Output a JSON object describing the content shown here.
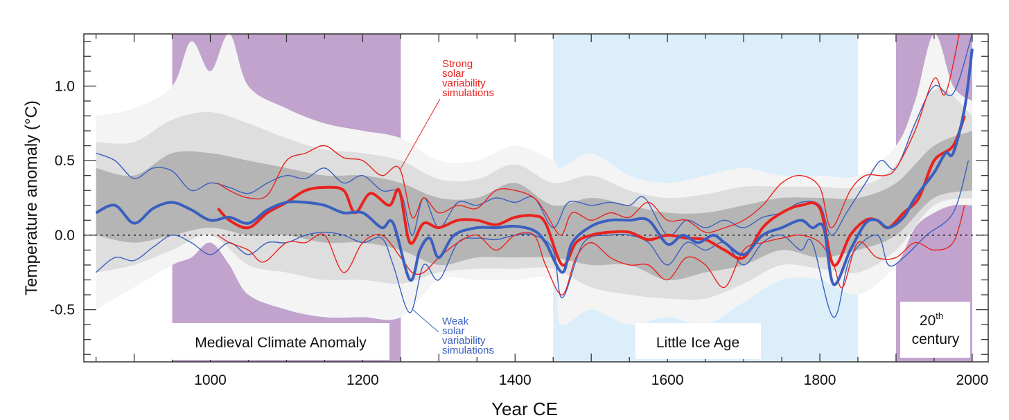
{
  "chart_data": {
    "type": "line",
    "title": "",
    "xlabel": "Year CE",
    "ylabel": "Temperature anomaly (°C)",
    "xlim": [
      834,
      2021
    ],
    "ylim": [
      -0.85,
      1.35
    ],
    "x_ticks": [
      1000,
      1200,
      1400,
      1600,
      1800,
      2000
    ],
    "x_tick_labels": [
      "1000",
      "1200",
      "1400",
      "1600",
      "1800",
      "2000"
    ],
    "y_ticks": [
      -0.5,
      0.0,
      0.5,
      1.0
    ],
    "y_tick_labels": [
      "-0.5",
      "0.0",
      "0.5",
      "1.0"
    ],
    "zero_line": "dotted",
    "grid": false,
    "colors": {
      "strong": "#e8231f",
      "weak": "#3a5fbf",
      "medieval_shade": "#c1a3cd",
      "lia_shade": "#dbeefa",
      "envelope": "#888888"
    },
    "shaded_periods": [
      {
        "name": "Medieval Climate Anomaly",
        "label": "Medieval Climate Anomaly",
        "start": 950,
        "end": 1250,
        "color": "#c1a3cd"
      },
      {
        "name": "Little Ice Age",
        "label": "Little Ice Age",
        "start": 1450,
        "end": 1850,
        "color": "#dbeefa"
      },
      {
        "name": "20th century",
        "label_main": "20",
        "label_sup": "th",
        "label_second": "century",
        "start": 1900,
        "end": 2000,
        "color": "#c1a3cd"
      }
    ],
    "annotations": {
      "strong": [
        "Strong",
        "solar",
        "variability",
        "simulations"
      ],
      "weak": [
        "Weak",
        "solar",
        "variability",
        "simulations"
      ]
    },
    "envelope": {
      "outer": {
        "x": [
          850,
          900,
          950,
          975,
          1000,
          1025,
          1050,
          1100,
          1150,
          1200,
          1250,
          1300,
          1350,
          1400,
          1450,
          1460,
          1500,
          1550,
          1600,
          1650,
          1700,
          1750,
          1800,
          1850,
          1900,
          1925,
          1950,
          1975,
          2000
        ],
        "upper": [
          0.8,
          0.85,
          1.0,
          1.3,
          1.1,
          1.35,
          1.0,
          0.85,
          0.75,
          0.7,
          0.65,
          0.5,
          0.5,
          0.6,
          0.5,
          0.45,
          0.55,
          0.4,
          0.35,
          0.4,
          0.45,
          0.4,
          0.4,
          0.4,
          0.6,
          0.9,
          1.35,
          1.0,
          0.9
        ],
        "lower": [
          -0.5,
          -0.35,
          -0.2,
          -0.15,
          -0.05,
          -0.2,
          -0.4,
          -0.5,
          -0.55,
          -0.55,
          -0.55,
          -0.3,
          -0.3,
          -0.3,
          -0.3,
          -0.6,
          -0.5,
          -0.6,
          -0.55,
          -0.6,
          -0.45,
          -0.3,
          -0.3,
          -0.4,
          -0.2,
          0.05,
          0.15,
          0.2,
          0.2
        ]
      },
      "core": {
        "x": [
          850,
          900,
          950,
          1000,
          1050,
          1100,
          1150,
          1200,
          1250,
          1300,
          1350,
          1400,
          1450,
          1500,
          1550,
          1600,
          1650,
          1700,
          1750,
          1800,
          1850,
          1900,
          1950,
          2000
        ],
        "upper": [
          0.45,
          0.4,
          0.55,
          0.55,
          0.5,
          0.45,
          0.4,
          0.4,
          0.35,
          0.25,
          0.25,
          0.35,
          0.2,
          0.25,
          0.2,
          0.15,
          0.15,
          0.2,
          0.25,
          0.25,
          0.25,
          0.35,
          0.6,
          0.7
        ],
        "lower": [
          0.0,
          -0.05,
          0.0,
          0.05,
          0.0,
          0.0,
          -0.05,
          -0.05,
          -0.1,
          -0.2,
          -0.15,
          -0.15,
          -0.15,
          -0.2,
          -0.2,
          -0.3,
          -0.25,
          -0.2,
          -0.1,
          -0.15,
          -0.1,
          0.0,
          0.25,
          0.3
        ]
      }
    },
    "series": [
      {
        "id": "weak-upper",
        "group": "weak",
        "kind": "range",
        "x": [
          850,
          875,
          900,
          925,
          950,
          975,
          1000,
          1025,
          1050,
          1075,
          1100,
          1125,
          1150,
          1175,
          1200,
          1225,
          1250,
          1265,
          1280,
          1300,
          1325,
          1350,
          1375,
          1400,
          1425,
          1450,
          1470,
          1500,
          1525,
          1550,
          1570,
          1600,
          1625,
          1650,
          1675,
          1700,
          1725,
          1750,
          1775,
          1800,
          1815,
          1835,
          1860,
          1880,
          1900,
          1925,
          1950,
          1975,
          2000
        ],
        "y": [
          0.55,
          0.5,
          0.38,
          0.45,
          0.43,
          0.3,
          0.35,
          0.32,
          0.28,
          0.35,
          0.4,
          0.38,
          0.45,
          0.35,
          0.4,
          0.3,
          0.28,
          0.0,
          0.25,
          0.05,
          0.22,
          0.2,
          0.25,
          0.22,
          0.25,
          0.05,
          0.22,
          0.2,
          0.22,
          0.2,
          0.25,
          0.0,
          0.1,
          0.05,
          0.1,
          0.05,
          0.12,
          0.15,
          0.22,
          0.2,
          0.0,
          0.15,
          0.35,
          0.5,
          0.45,
          0.75,
          1.0,
          0.95,
          1.35
        ]
      },
      {
        "id": "weak-lower",
        "group": "weak",
        "kind": "range",
        "x": [
          850,
          875,
          900,
          925,
          950,
          975,
          1000,
          1025,
          1050,
          1075,
          1100,
          1125,
          1150,
          1175,
          1200,
          1225,
          1240,
          1262,
          1280,
          1300,
          1325,
          1350,
          1375,
          1400,
          1425,
          1450,
          1462,
          1490,
          1525,
          1550,
          1575,
          1600,
          1625,
          1650,
          1675,
          1700,
          1725,
          1750,
          1775,
          1790,
          1818,
          1840,
          1875,
          1890,
          1910,
          1940,
          1975,
          1995
        ],
        "y": [
          -0.25,
          -0.15,
          -0.17,
          -0.08,
          0.0,
          -0.05,
          -0.13,
          -0.05,
          -0.13,
          -0.05,
          -0.05,
          0.0,
          0.02,
          0.0,
          -0.05,
          -0.02,
          -0.2,
          -0.52,
          -0.2,
          -0.3,
          -0.05,
          -0.02,
          -0.03,
          0.0,
          0.0,
          -0.1,
          -0.42,
          -0.05,
          0.0,
          0.0,
          -0.05,
          -0.2,
          -0.05,
          -0.1,
          -0.05,
          -0.2,
          -0.05,
          0.0,
          -0.1,
          -0.05,
          -0.55,
          -0.15,
          0.0,
          -0.2,
          -0.15,
          0.0,
          0.15,
          0.5
        ]
      },
      {
        "id": "strong-upper",
        "group": "strong",
        "kind": "range",
        "x": [
          1010,
          1025,
          1050,
          1075,
          1100,
          1125,
          1150,
          1175,
          1200,
          1225,
          1248,
          1265,
          1280,
          1300,
          1325,
          1350,
          1375,
          1400,
          1425,
          1440,
          1460,
          1475,
          1500,
          1525,
          1550,
          1575,
          1600,
          1625,
          1650,
          1675,
          1700,
          1725,
          1750,
          1775,
          1800,
          1815,
          1840,
          1860,
          1885,
          1900,
          1925,
          1950,
          1965,
          1985
        ],
        "y": [
          0.35,
          0.3,
          0.25,
          0.27,
          0.5,
          0.55,
          0.6,
          0.52,
          0.5,
          0.4,
          0.45,
          0.12,
          0.25,
          0.15,
          0.2,
          0.18,
          0.3,
          0.3,
          0.25,
          0.15,
          0.0,
          0.15,
          0.1,
          0.15,
          0.12,
          0.22,
          0.1,
          0.1,
          0.02,
          0.05,
          0.1,
          0.2,
          0.35,
          0.4,
          0.32,
          0.05,
          0.3,
          0.4,
          0.4,
          0.45,
          0.7,
          1.05,
          0.95,
          1.4
        ]
      },
      {
        "id": "strong-lower",
        "group": "strong",
        "kind": "range",
        "x": [
          1010,
          1025,
          1050,
          1070,
          1100,
          1125,
          1150,
          1175,
          1200,
          1225,
          1250,
          1265,
          1280,
          1300,
          1325,
          1350,
          1375,
          1400,
          1425,
          1440,
          1462,
          1480,
          1500,
          1525,
          1550,
          1575,
          1600,
          1625,
          1650,
          1675,
          1700,
          1725,
          1750,
          1775,
          1800,
          1818,
          1830,
          1850,
          1875,
          1900,
          1925,
          1950,
          1975,
          1990
        ],
        "y": [
          0.0,
          -0.05,
          -0.1,
          -0.18,
          -0.05,
          -0.05,
          0.0,
          -0.25,
          -0.05,
          0.0,
          -0.15,
          -0.25,
          -0.25,
          -0.15,
          -0.05,
          0.0,
          -0.1,
          0.0,
          0.0,
          -0.2,
          -0.4,
          -0.15,
          -0.05,
          -0.15,
          -0.2,
          -0.2,
          -0.3,
          -0.15,
          -0.2,
          -0.35,
          -0.1,
          -0.05,
          -0.02,
          0.0,
          -0.05,
          -0.2,
          -0.35,
          -0.05,
          -0.15,
          -0.15,
          -0.05,
          -0.1,
          -0.05,
          0.2
        ]
      },
      {
        "id": "strong-mean",
        "group": "strong",
        "kind": "mean",
        "x": [
          1010,
          1025,
          1050,
          1075,
          1100,
          1125,
          1150,
          1175,
          1190,
          1210,
          1235,
          1248,
          1262,
          1280,
          1300,
          1325,
          1350,
          1375,
          1400,
          1425,
          1440,
          1462,
          1480,
          1500,
          1525,
          1550,
          1575,
          1600,
          1625,
          1650,
          1675,
          1700,
          1725,
          1750,
          1775,
          1800,
          1818,
          1840,
          1860,
          1875,
          1890,
          1910,
          1930,
          1950,
          1975,
          1990
        ],
        "y": [
          0.18,
          0.1,
          0.05,
          0.15,
          0.22,
          0.3,
          0.32,
          0.3,
          0.15,
          0.28,
          0.2,
          0.3,
          -0.05,
          0.08,
          0.05,
          0.1,
          0.1,
          0.07,
          0.12,
          0.13,
          0.08,
          -0.2,
          -0.05,
          0.0,
          0.02,
          0.02,
          -0.03,
          0.0,
          -0.02,
          -0.03,
          -0.1,
          -0.15,
          0.05,
          0.15,
          0.2,
          0.18,
          -0.2,
          0.0,
          0.1,
          0.1,
          0.05,
          0.15,
          0.25,
          0.5,
          0.6,
          0.8
        ]
      },
      {
        "id": "weak-mean",
        "group": "weak",
        "kind": "mean",
        "x": [
          850,
          875,
          900,
          925,
          950,
          975,
          1000,
          1025,
          1050,
          1075,
          1100,
          1125,
          1150,
          1175,
          1200,
          1225,
          1240,
          1262,
          1275,
          1288,
          1300,
          1320,
          1350,
          1375,
          1400,
          1425,
          1440,
          1462,
          1475,
          1500,
          1525,
          1550,
          1575,
          1600,
          1620,
          1640,
          1660,
          1675,
          1700,
          1725,
          1750,
          1775,
          1790,
          1805,
          1818,
          1840,
          1860,
          1875,
          1890,
          1910,
          1925,
          1950,
          1965,
          1975,
          1990,
          2000
        ],
        "y": [
          0.15,
          0.2,
          0.08,
          0.18,
          0.22,
          0.17,
          0.1,
          0.12,
          0.08,
          0.17,
          0.22,
          0.22,
          0.2,
          0.15,
          0.15,
          0.05,
          0.08,
          -0.3,
          -0.1,
          -0.02,
          -0.15,
          0.0,
          0.05,
          0.05,
          0.06,
          0.03,
          -0.05,
          -0.25,
          -0.05,
          0.06,
          0.1,
          0.1,
          0.1,
          -0.06,
          0.0,
          -0.05,
          0.0,
          -0.05,
          -0.13,
          0.0,
          0.05,
          0.1,
          0.05,
          0.05,
          -0.33,
          -0.1,
          0.08,
          0.1,
          0.05,
          0.12,
          0.25,
          0.42,
          0.55,
          0.55,
          0.85,
          1.25
        ]
      }
    ]
  }
}
